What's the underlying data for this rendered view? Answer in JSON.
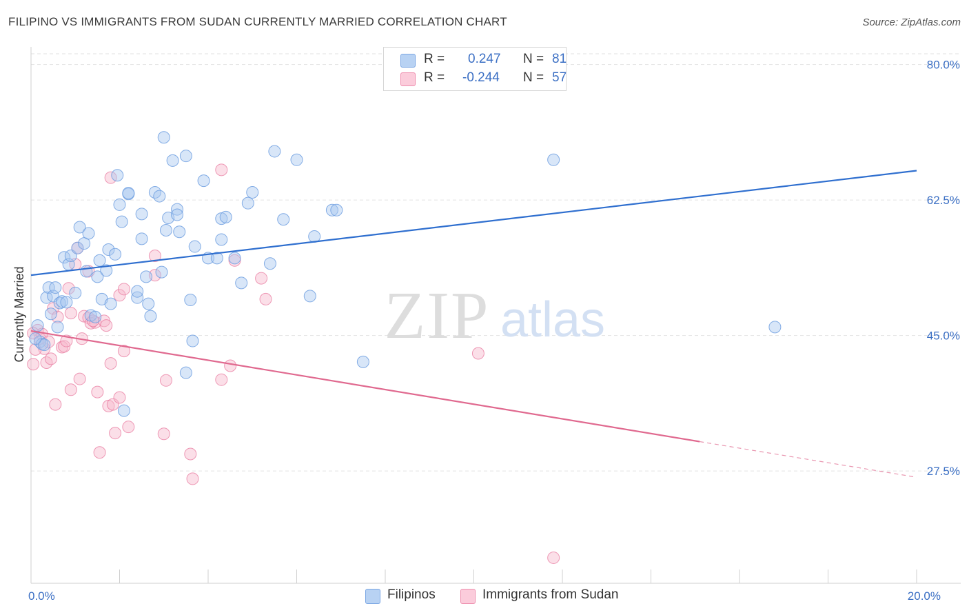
{
  "header": {
    "title": "FILIPINO VS IMMIGRANTS FROM SUDAN CURRENTLY MARRIED CORRELATION CHART",
    "source": "Source: ZipAtlas.com"
  },
  "watermark": {
    "zip": "ZIP",
    "atlas": "atlas"
  },
  "legend": {
    "rows": [
      {
        "r_label": "R =",
        "r_value": "0.247",
        "n_label": "N =",
        "n_value": "81",
        "color": "#a9c8f0"
      },
      {
        "r_label": "R =",
        "r_value": "-0.244",
        "n_label": "N =",
        "n_value": "57",
        "color": "#f7b8cc"
      }
    ]
  },
  "bottom_legend": {
    "items": [
      {
        "label": "Filipinos",
        "color": "#a9c8f0"
      },
      {
        "label": "Immigrants from Sudan",
        "color": "#f7b8cc"
      }
    ]
  },
  "chart_data": {
    "type": "scatter",
    "title": "FILIPINO VS IMMIGRANTS FROM SUDAN CURRENTLY MARRIED CORRELATION CHART",
    "xlabel": "",
    "ylabel": "Currently Married",
    "xlim": [
      0,
      20
    ],
    "ylim": [
      13,
      83
    ],
    "x_tick_labels": [
      {
        "value": 0,
        "label": "0.0%"
      },
      {
        "value": 20,
        "label": "20.0%"
      }
    ],
    "y_tick_labels": [
      {
        "value": 27.5,
        "label": "27.5%"
      },
      {
        "value": 45.0,
        "label": "45.0%"
      },
      {
        "value": 62.5,
        "label": "62.5%"
      },
      {
        "value": 80.0,
        "label": "80.0%"
      }
    ],
    "grid": true,
    "legend_position": "top-center",
    "series": [
      {
        "name": "Filipinos",
        "color": "#6f9fe0",
        "fill": "#a9c8f0",
        "trend": {
          "x": [
            0,
            20
          ],
          "y": [
            52.8,
            66.3
          ]
        },
        "points": [
          [
            0.15,
            46.3
          ],
          [
            0.2,
            44.2
          ],
          [
            0.25,
            43.9
          ],
          [
            0.3,
            43.8
          ],
          [
            0.35,
            49.9
          ],
          [
            0.4,
            51.2
          ],
          [
            0.45,
            47.8
          ],
          [
            0.5,
            50.1
          ],
          [
            0.55,
            51.2
          ],
          [
            0.6,
            46.1
          ],
          [
            0.65,
            49.2
          ],
          [
            0.7,
            49.4
          ],
          [
            0.75,
            55.1
          ],
          [
            0.8,
            49.3
          ],
          [
            0.85,
            54.2
          ],
          [
            0.9,
            55.3
          ],
          [
            1.0,
            50.5
          ],
          [
            1.05,
            56.3
          ],
          [
            1.1,
            59.0
          ],
          [
            1.2,
            56.9
          ],
          [
            1.25,
            53.3
          ],
          [
            1.3,
            58.2
          ],
          [
            1.35,
            47.6
          ],
          [
            1.45,
            47.4
          ],
          [
            1.5,
            52.6
          ],
          [
            1.55,
            54.7
          ],
          [
            1.6,
            49.7
          ],
          [
            1.7,
            53.4
          ],
          [
            1.75,
            56.1
          ],
          [
            1.8,
            49.1
          ],
          [
            1.9,
            55.5
          ],
          [
            1.95,
            65.7
          ],
          [
            2.0,
            61.9
          ],
          [
            2.05,
            59.7
          ],
          [
            2.2,
            63.3
          ],
          [
            2.2,
            63.4
          ],
          [
            2.4,
            49.9
          ],
          [
            2.4,
            50.7
          ],
          [
            2.5,
            60.7
          ],
          [
            2.5,
            57.5
          ],
          [
            2.6,
            52.6
          ],
          [
            2.65,
            49.1
          ],
          [
            2.7,
            47.5
          ],
          [
            2.8,
            63.5
          ],
          [
            2.9,
            63.0
          ],
          [
            2.95,
            53.2
          ],
          [
            3.0,
            70.6
          ],
          [
            3.05,
            58.6
          ],
          [
            3.1,
            60.2
          ],
          [
            3.2,
            67.6
          ],
          [
            3.3,
            61.3
          ],
          [
            3.3,
            60.6
          ],
          [
            3.35,
            58.4
          ],
          [
            3.5,
            68.2
          ],
          [
            3.5,
            40.2
          ],
          [
            3.6,
            49.6
          ],
          [
            3.65,
            44.3
          ],
          [
            3.7,
            56.5
          ],
          [
            3.9,
            65.0
          ],
          [
            4.0,
            55.0
          ],
          [
            4.2,
            55.0
          ],
          [
            4.3,
            57.4
          ],
          [
            4.3,
            60.1
          ],
          [
            4.4,
            60.3
          ],
          [
            4.6,
            55.0
          ],
          [
            4.75,
            51.8
          ],
          [
            4.9,
            62.1
          ],
          [
            5.0,
            63.5
          ],
          [
            5.4,
            54.3
          ],
          [
            5.5,
            68.8
          ],
          [
            5.7,
            60.0
          ],
          [
            6.0,
            67.7
          ],
          [
            6.3,
            50.1
          ],
          [
            6.4,
            57.8
          ],
          [
            6.8,
            61.2
          ],
          [
            6.9,
            61.2
          ],
          [
            7.5,
            41.6
          ],
          [
            11.8,
            67.7
          ],
          [
            16.8,
            46.1
          ],
          [
            2.1,
            35.3
          ],
          [
            0.1,
            44.6
          ]
        ]
      },
      {
        "name": "Immigrants from Sudan",
        "color": "#e8799f",
        "fill": "#f7b8cc",
        "trend_solid": {
          "x": [
            0,
            15.1
          ],
          "y": [
            45.6,
            31.3
          ]
        },
        "trend_dashed": {
          "x": [
            15.1,
            20
          ],
          "y": [
            31.3,
            26.7
          ]
        },
        "points": [
          [
            0.05,
            41.3
          ],
          [
            0.15,
            45.7
          ],
          [
            0.2,
            44.6
          ],
          [
            0.25,
            45.2
          ],
          [
            0.3,
            43.3
          ],
          [
            0.35,
            41.5
          ],
          [
            0.4,
            44.2
          ],
          [
            0.45,
            42.0
          ],
          [
            0.5,
            48.5
          ],
          [
            0.55,
            36.1
          ],
          [
            0.6,
            47.4
          ],
          [
            0.7,
            43.5
          ],
          [
            0.75,
            43.6
          ],
          [
            0.8,
            44.3
          ],
          [
            0.85,
            51.1
          ],
          [
            0.9,
            47.9
          ],
          [
            0.9,
            38.0
          ],
          [
            1.0,
            54.2
          ],
          [
            1.05,
            56.3
          ],
          [
            1.1,
            39.4
          ],
          [
            1.15,
            44.6
          ],
          [
            1.2,
            47.5
          ],
          [
            1.3,
            47.3
          ],
          [
            1.3,
            53.3
          ],
          [
            1.35,
            46.6
          ],
          [
            1.45,
            46.7
          ],
          [
            1.5,
            37.7
          ],
          [
            1.55,
            29.9
          ],
          [
            1.65,
            46.9
          ],
          [
            1.7,
            46.3
          ],
          [
            1.75,
            35.9
          ],
          [
            1.8,
            41.4
          ],
          [
            1.8,
            65.4
          ],
          [
            1.85,
            36.1
          ],
          [
            1.9,
            32.4
          ],
          [
            2.0,
            50.2
          ],
          [
            2.0,
            37.0
          ],
          [
            2.1,
            51.0
          ],
          [
            2.1,
            43.0
          ],
          [
            2.2,
            33.2
          ],
          [
            2.8,
            55.3
          ],
          [
            2.8,
            52.8
          ],
          [
            3.0,
            32.3
          ],
          [
            3.05,
            39.2
          ],
          [
            3.6,
            29.7
          ],
          [
            3.65,
            26.5
          ],
          [
            4.3,
            39.3
          ],
          [
            4.3,
            66.4
          ],
          [
            4.5,
            41.1
          ],
          [
            4.6,
            54.7
          ],
          [
            5.2,
            52.4
          ],
          [
            5.3,
            49.7
          ],
          [
            10.1,
            42.7
          ],
          [
            11.8,
            16.3
          ],
          [
            0.05,
            45.3
          ],
          [
            0.1,
            43.2
          ],
          [
            1.4,
            46.9
          ]
        ]
      }
    ]
  }
}
